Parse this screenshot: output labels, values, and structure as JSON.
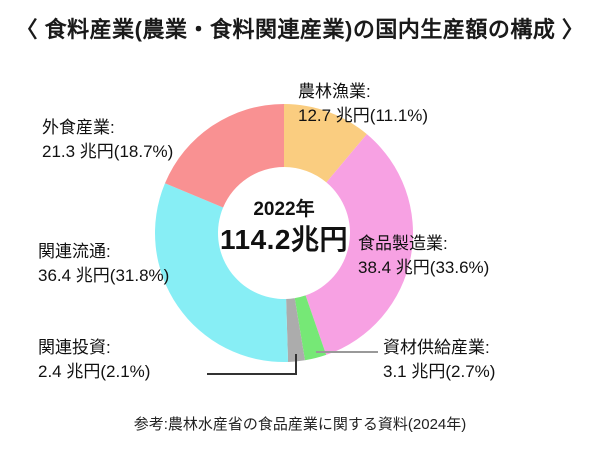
{
  "title": "〈 食料産業(農業・食料関連産業)の国内生産額の構成 〉",
  "center": {
    "year": "2022年",
    "total": "114.2兆円"
  },
  "footer": "参考:農林水産省の食品産業に関する資料(2024年)",
  "chart_data": {
    "type": "pie",
    "subtype": "donut",
    "title": "食料産業(農業・食料関連産業)の国内生産額の構成",
    "center_label": [
      "2022年",
      "114.2兆円"
    ],
    "total_trillion_yen": 114.2,
    "unit": "兆円",
    "start_angle": "top",
    "direction": "clockwise",
    "categories": [
      "農林漁業",
      "食品製造業",
      "資材供給産業",
      "関連投資",
      "関連流通",
      "外食産業"
    ],
    "values": [
      12.7,
      38.4,
      3.1,
      2.4,
      36.4,
      21.3
    ],
    "percentages": [
      11.1,
      33.6,
      2.7,
      2.1,
      31.8,
      18.7
    ],
    "colors": [
      "#FACD80",
      "#F7A1E3",
      "#76E876",
      "#ACACAC",
      "#87EEF5",
      "#F99192"
    ]
  },
  "labels": [
    {
      "name": "農林漁業:",
      "value": "12.7 兆円(11.1%)"
    },
    {
      "name": "外食産業:",
      "value": "21.3 兆円(18.7%)"
    },
    {
      "name": "食品製造業:",
      "value": "38.4 兆円(33.6%)"
    },
    {
      "name": "関連流通:",
      "value": "36.4 兆円(31.8%)"
    },
    {
      "name": "関連投資:",
      "value": "2.4 兆円(2.1%)"
    },
    {
      "name": "資材供給産業:",
      "value": "3.1 兆円(2.7%)"
    }
  ]
}
